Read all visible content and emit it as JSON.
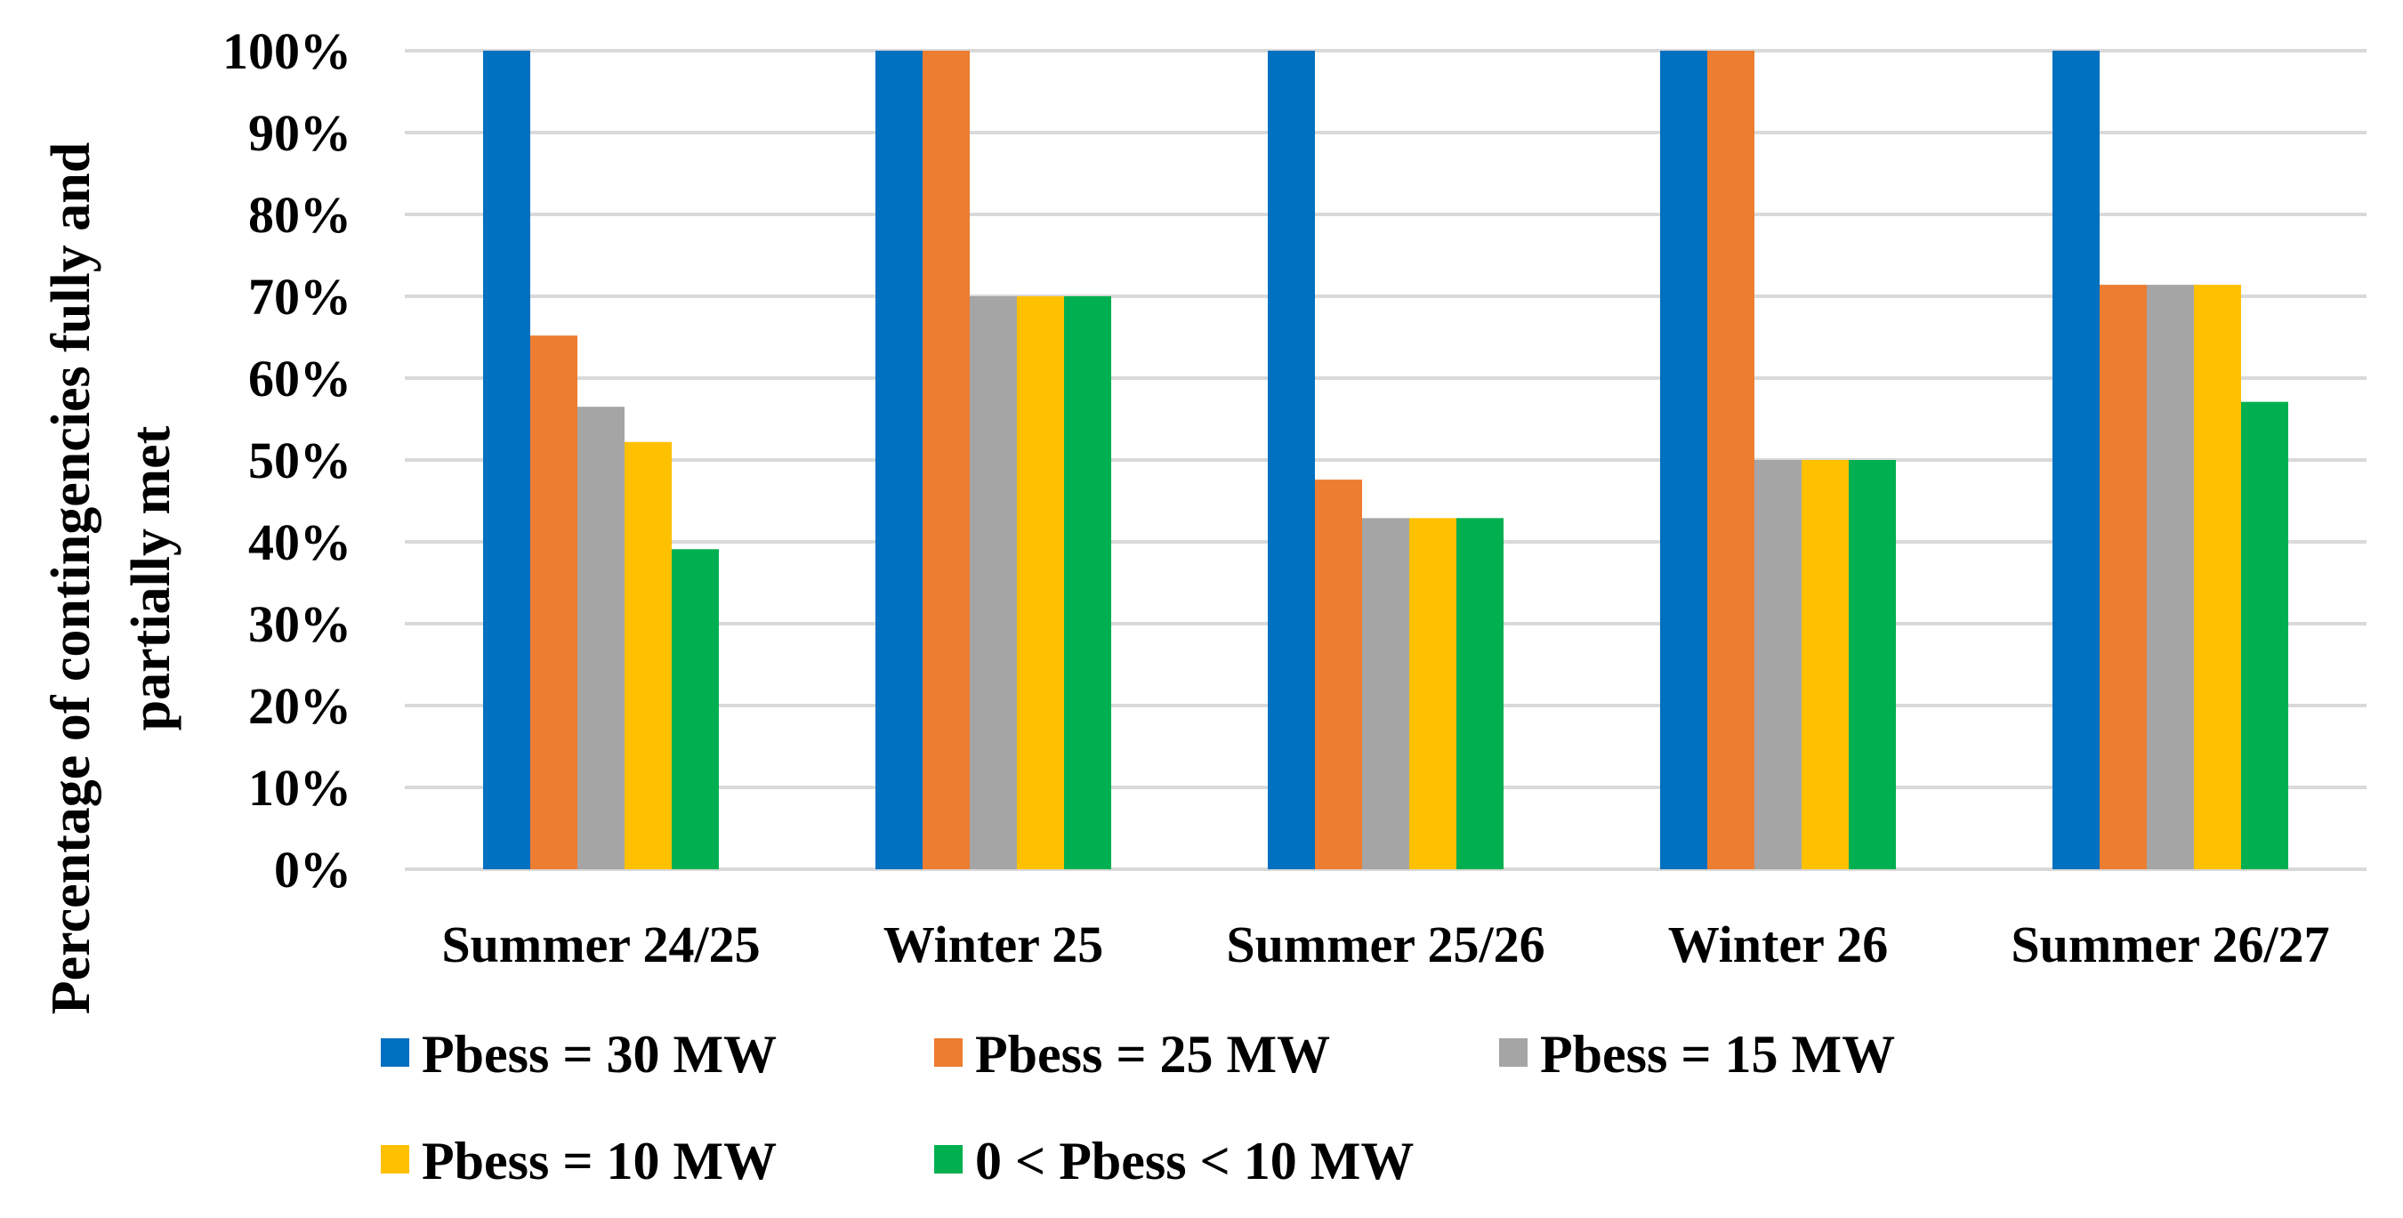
{
  "chart_data": {
    "type": "bar",
    "title": "",
    "xlabel": "",
    "ylabel_lines": [
      "Percentage of contingencies fully and",
      "partially met"
    ],
    "ylim": [
      0,
      100
    ],
    "yticks": [
      0,
      10,
      20,
      30,
      40,
      50,
      60,
      70,
      80,
      90,
      100
    ],
    "ytick_labels": [
      "0%",
      "10%",
      "20%",
      "30%",
      "40%",
      "50%",
      "60%",
      "70%",
      "80%",
      "90%",
      "100%"
    ],
    "categories": [
      "Summer 24/25",
      "Winter 25",
      "Summer 25/26",
      "Winter 26",
      "Summer 26/27"
    ],
    "grid": true,
    "legend_position": "bottom",
    "series": [
      {
        "name": "Pbess = 30 MW",
        "color": "#0070c0",
        "values": [
          100,
          100,
          100,
          100,
          100
        ]
      },
      {
        "name": "Pbess = 25 MW",
        "color": "#ed7d31",
        "values": [
          65.2,
          100,
          47.6,
          100,
          71.4
        ]
      },
      {
        "name": "Pbess = 15 MW",
        "color": "#a5a5a5",
        "values": [
          56.5,
          70,
          42.9,
          50,
          71.4
        ]
      },
      {
        "name": "Pbess = 10 MW",
        "color": "#ffc000",
        "values": [
          52.2,
          70,
          42.9,
          50,
          71.4
        ]
      },
      {
        "name": "0 < Pbess < 10 MW",
        "color": "#00b050",
        "values": [
          39.1,
          70,
          42.9,
          50,
          57.1
        ]
      }
    ]
  }
}
